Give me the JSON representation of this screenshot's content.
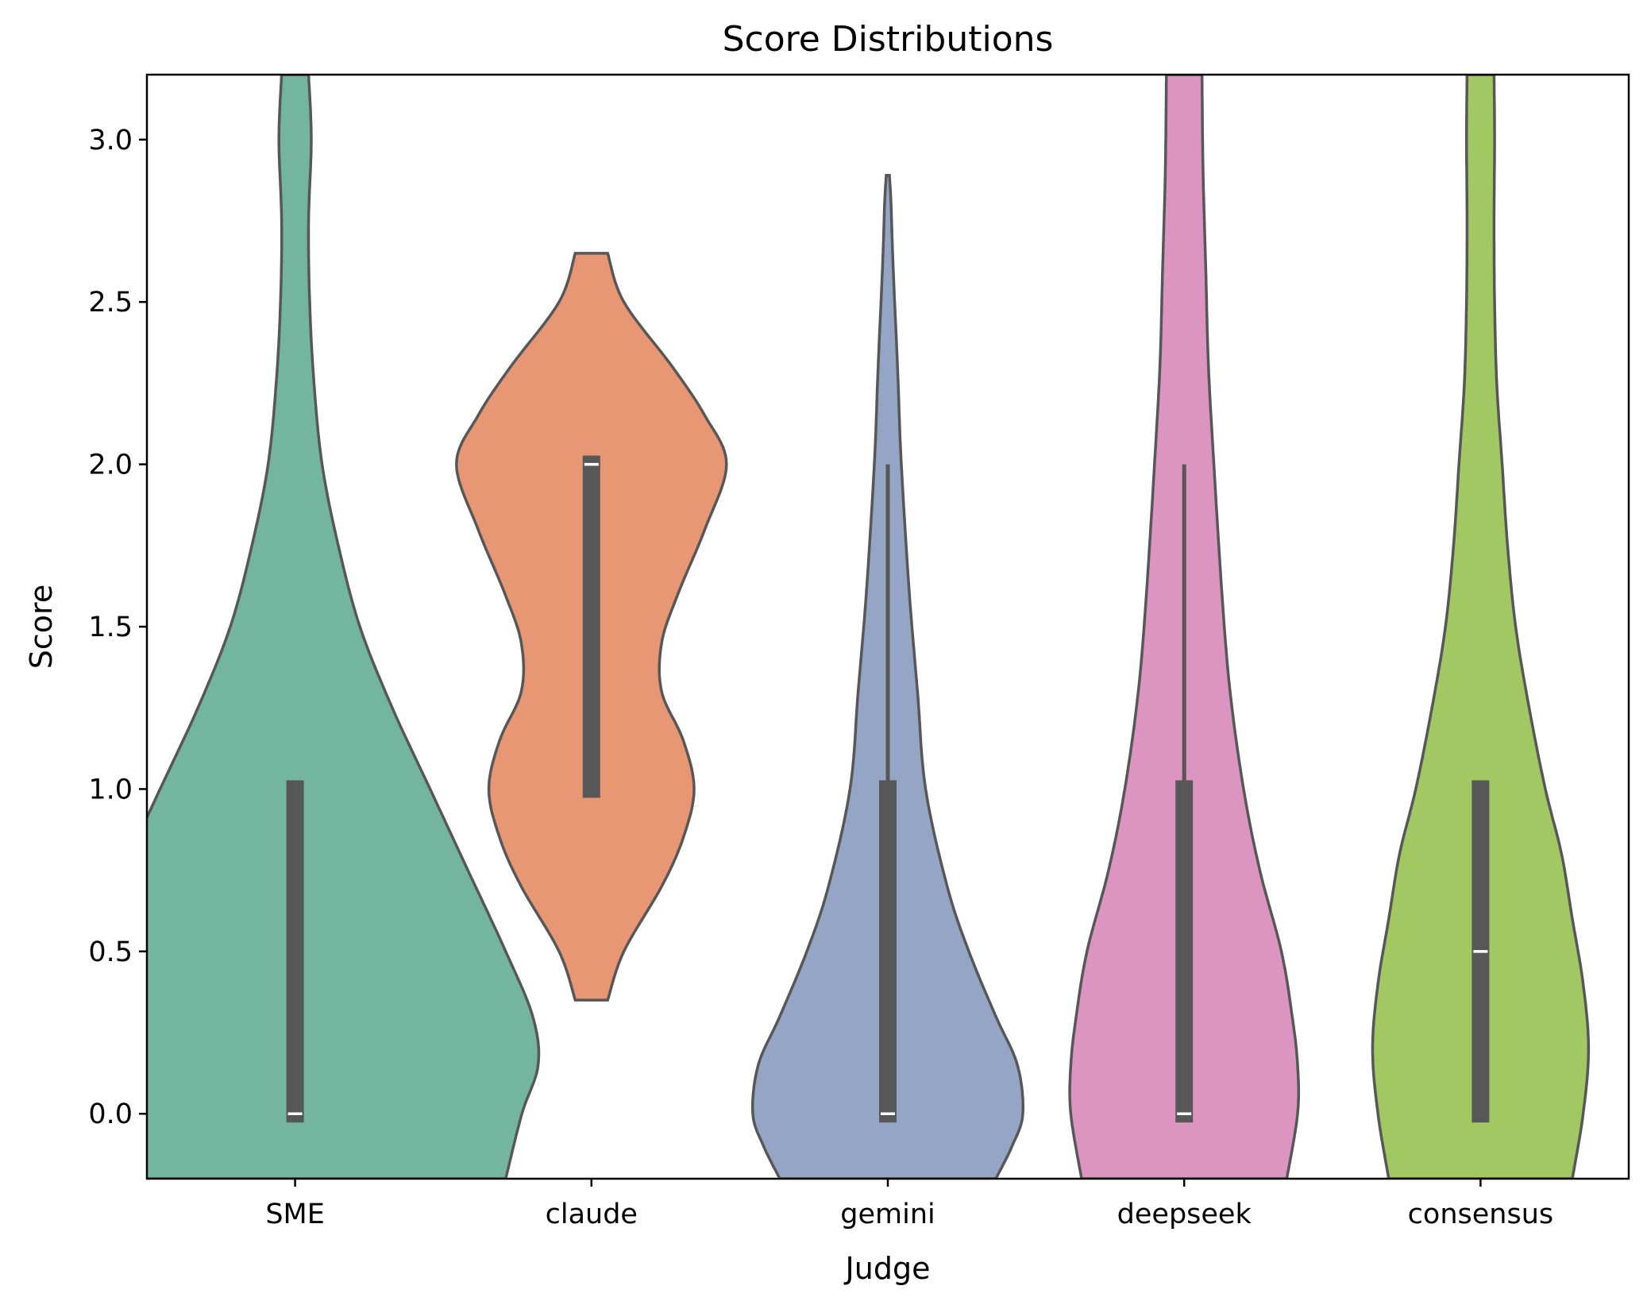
{
  "chart_data": {
    "type": "violin",
    "title": "Score Distributions",
    "xlabel": "Judge",
    "ylabel": "Score",
    "ylim": [
      -0.2,
      3.2
    ],
    "yticks": [
      "0.0",
      "0.5",
      "1.0",
      "1.5",
      "2.0",
      "2.5",
      "3.0"
    ],
    "categories": [
      "SME",
      "claude",
      "gemini",
      "deepseek",
      "consensus"
    ],
    "grid": false,
    "legend": "none",
    "series": [
      {
        "colors": {
          "fill": "#73b59e",
          "edge": "#575757"
        },
        "q1": 0,
        "median": 0,
        "q3": 1,
        "whisker_low": 0,
        "whisker_high": 1,
        "density": [
          [
            -0.2,
            0.39
          ],
          [
            0,
            0.42
          ],
          [
            0.15,
            0.45
          ],
          [
            0.3,
            0.44
          ],
          [
            0.5,
            0.39
          ],
          [
            0.75,
            0.32
          ],
          [
            1.0,
            0.25
          ],
          [
            1.25,
            0.18
          ],
          [
            1.5,
            0.12
          ],
          [
            1.75,
            0.08
          ],
          [
            2.0,
            0.05
          ],
          [
            2.25,
            0.035
          ],
          [
            2.5,
            0.027
          ],
          [
            2.75,
            0.025
          ],
          [
            3.0,
            0.03
          ],
          [
            3.2,
            0.025
          ]
        ]
      },
      {
        "colors": {
          "fill": "#e89774",
          "edge": "#575757"
        },
        "q1": 1,
        "median": 2,
        "q3": 2,
        "whisker_low": 1,
        "whisker_high": 2,
        "density": [
          [
            0.35,
            0.03
          ],
          [
            0.5,
            0.06
          ],
          [
            0.7,
            0.13
          ],
          [
            0.85,
            0.17
          ],
          [
            1.0,
            0.19
          ],
          [
            1.15,
            0.17
          ],
          [
            1.3,
            0.13
          ],
          [
            1.45,
            0.13
          ],
          [
            1.6,
            0.16
          ],
          [
            1.8,
            0.21
          ],
          [
            2.0,
            0.25
          ],
          [
            2.15,
            0.21
          ],
          [
            2.3,
            0.15
          ],
          [
            2.5,
            0.06
          ],
          [
            2.65,
            0.03
          ]
        ]
      },
      {
        "colors": {
          "fill": "#95a5c5",
          "edge": "#575757"
        },
        "q1": 0,
        "median": 0,
        "q3": 1,
        "whisker_low": 0,
        "whisker_high": 2,
        "density": [
          [
            -0.2,
            0.2
          ],
          [
            -0.1,
            0.23
          ],
          [
            0,
            0.25
          ],
          [
            0.15,
            0.24
          ],
          [
            0.3,
            0.2
          ],
          [
            0.5,
            0.15
          ],
          [
            0.7,
            0.11
          ],
          [
            1.0,
            0.07
          ],
          [
            1.3,
            0.055
          ],
          [
            1.6,
            0.04
          ],
          [
            2.0,
            0.025
          ],
          [
            2.3,
            0.018
          ],
          [
            2.6,
            0.01
          ],
          [
            2.8,
            0.006
          ],
          [
            2.89,
            0.003
          ]
        ]
      },
      {
        "colors": {
          "fill": "#db95c0",
          "edge": "#575757"
        },
        "q1": 0,
        "median": 0,
        "q3": 1,
        "whisker_low": 0,
        "whisker_high": 2,
        "density": [
          [
            -0.2,
            0.19
          ],
          [
            0,
            0.21
          ],
          [
            0.15,
            0.21
          ],
          [
            0.3,
            0.2
          ],
          [
            0.5,
            0.18
          ],
          [
            0.75,
            0.14
          ],
          [
            1.0,
            0.11
          ],
          [
            1.3,
            0.085
          ],
          [
            1.6,
            0.07
          ],
          [
            2.0,
            0.055
          ],
          [
            2.3,
            0.045
          ],
          [
            2.6,
            0.04
          ],
          [
            2.9,
            0.035
          ],
          [
            3.2,
            0.033
          ]
        ]
      },
      {
        "colors": {
          "fill": "#a1c863",
          "edge": "#575757"
        },
        "q1": 0,
        "median": 0.5,
        "q3": 1,
        "whisker_low": 0,
        "whisker_high": 1,
        "density": [
          [
            -0.2,
            0.17
          ],
          [
            0,
            0.19
          ],
          [
            0.2,
            0.2
          ],
          [
            0.4,
            0.19
          ],
          [
            0.6,
            0.17
          ],
          [
            0.8,
            0.15
          ],
          [
            1.0,
            0.12
          ],
          [
            1.25,
            0.09
          ],
          [
            1.5,
            0.065
          ],
          [
            1.75,
            0.05
          ],
          [
            2.0,
            0.04
          ],
          [
            2.25,
            0.03
          ],
          [
            2.5,
            0.026
          ],
          [
            2.75,
            0.025
          ],
          [
            3.0,
            0.026
          ],
          [
            3.2,
            0.025
          ]
        ]
      }
    ]
  }
}
